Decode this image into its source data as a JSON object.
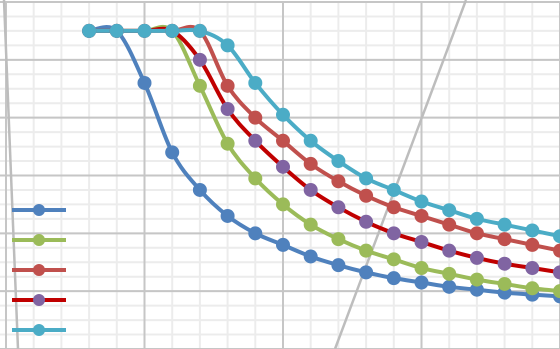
{
  "colors": {
    "background": "#ffffff",
    "grid_minor": "#ececec",
    "grid_major": "#c6c6c6",
    "diagonal": "#bdbdbd"
  },
  "chart_data": {
    "type": "line",
    "grid": true,
    "legend_position": "left",
    "xlim": [
      0,
      20
    ],
    "ylim": [
      -1,
      11
    ],
    "x": [
      3,
      4,
      5,
      6,
      7,
      8,
      9,
      10,
      11,
      12,
      13,
      14,
      15,
      16,
      17,
      18,
      19,
      20
    ],
    "series": [
      {
        "color": "#4f81bd",
        "values": [
          10,
          10,
          8.2,
          5.8,
          4.5,
          3.6,
          3.0,
          2.6,
          2.2,
          1.9,
          1.65,
          1.45,
          1.3,
          1.15,
          1.05,
          0.95,
          0.88,
          0.82
        ],
        "legend_marker": true
      },
      {
        "color": "#9bbb59",
        "values": [
          10,
          10,
          10,
          10,
          8.1,
          6.1,
          4.9,
          4.0,
          3.3,
          2.8,
          2.4,
          2.1,
          1.8,
          1.6,
          1.4,
          1.25,
          1.1,
          1.0
        ],
        "legend_marker": true
      },
      {
        "color": "#c0504d",
        "values": [
          10,
          10,
          10,
          10,
          10,
          8.1,
          7.0,
          6.2,
          5.4,
          4.8,
          4.3,
          3.9,
          3.6,
          3.3,
          3.0,
          2.8,
          2.6,
          2.4
        ],
        "legend_marker": true
      },
      {
        "color": "#c00000",
        "marker_color": "#8064a2",
        "values": [
          10,
          10,
          10,
          10,
          9.0,
          7.3,
          6.2,
          5.3,
          4.5,
          3.9,
          3.4,
          3.0,
          2.7,
          2.4,
          2.15,
          1.95,
          1.8,
          1.65
        ],
        "legend_marker": true
      },
      {
        "color": "#4bacc6",
        "values": [
          10,
          10,
          10,
          10,
          10,
          9.5,
          8.2,
          7.1,
          6.2,
          5.5,
          4.9,
          4.5,
          4.1,
          3.8,
          3.5,
          3.3,
          3.1,
          2.9
        ],
        "legend_marker": true
      }
    ]
  }
}
